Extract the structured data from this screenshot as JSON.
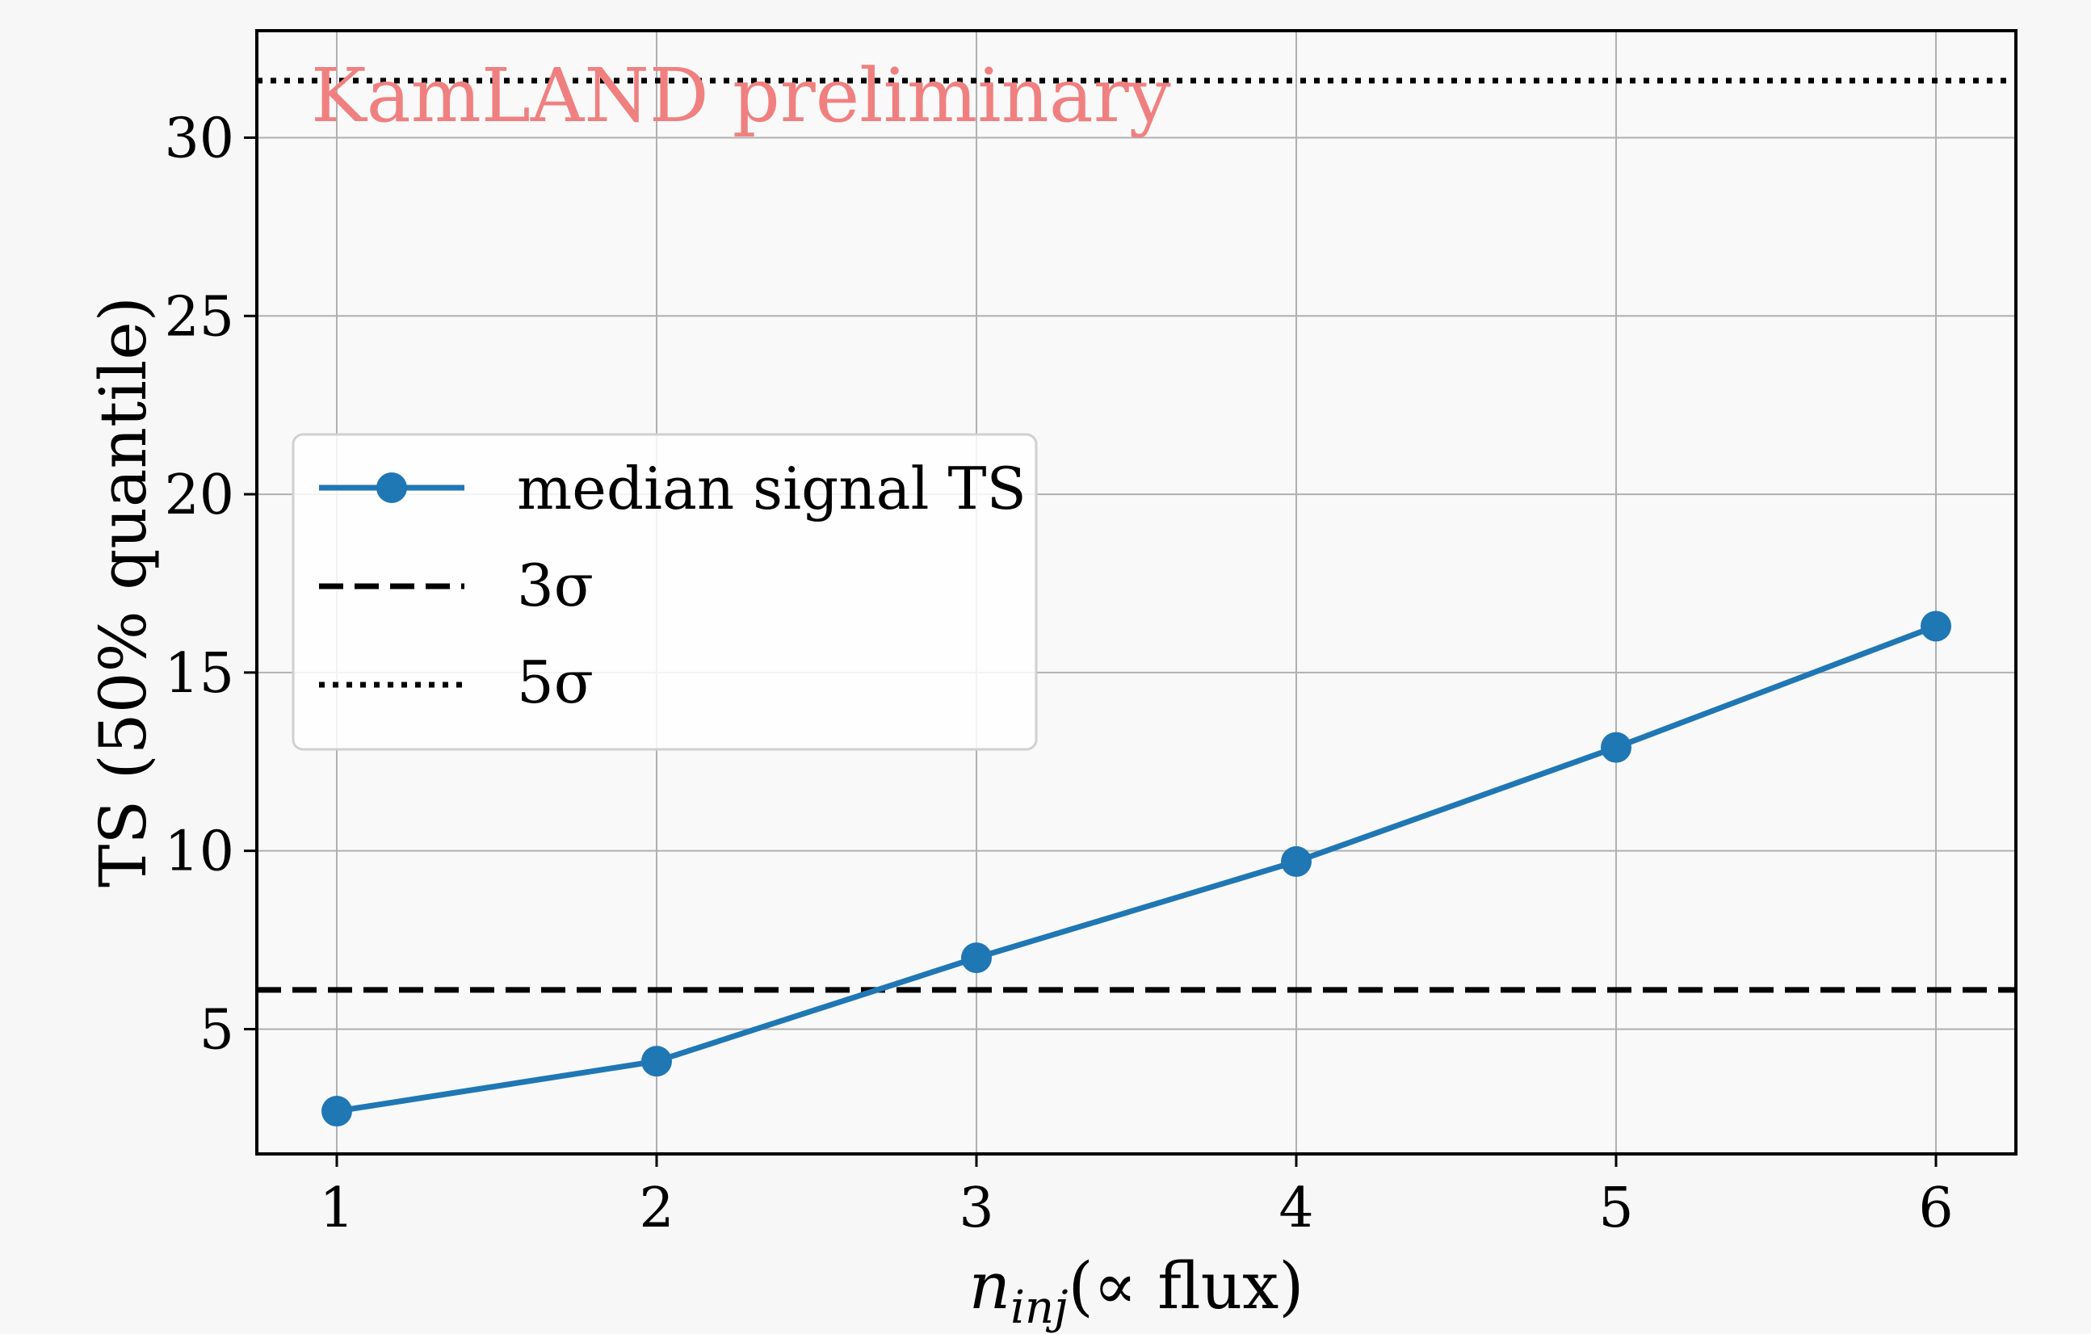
{
  "chart_data": {
    "type": "line",
    "title": "",
    "watermark": "KamLAND preliminary",
    "xlabel_main": "n",
    "xlabel_sub": "inj",
    "xlabel_rest": "(∝ flux)",
    "ylabel": "TS (50% quantile)",
    "xlim": [
      0.75,
      6.25
    ],
    "ylim": [
      1.5,
      33.0
    ],
    "xticks": [
      1,
      2,
      3,
      4,
      5,
      6
    ],
    "yticks": [
      5,
      10,
      15,
      20,
      25,
      30
    ],
    "grid": true,
    "legend_position": "center-left",
    "series": [
      {
        "name": "median signal TS",
        "style": "solid-markers",
        "color": "#1f77b4",
        "x": [
          1,
          2,
          3,
          4,
          5,
          6
        ],
        "y": [
          2.7,
          4.1,
          7.0,
          9.7,
          12.9,
          16.3
        ]
      }
    ],
    "reference_lines": [
      {
        "name": "3σ",
        "style": "dashed",
        "color": "#000000",
        "y": 6.1
      },
      {
        "name": "5σ",
        "style": "dotted",
        "color": "#000000",
        "y": 31.6
      }
    ],
    "colors": {
      "series": "#1f77b4",
      "watermark": "#f08080",
      "grid": "#b0b0b0",
      "axes": "#000000"
    }
  }
}
